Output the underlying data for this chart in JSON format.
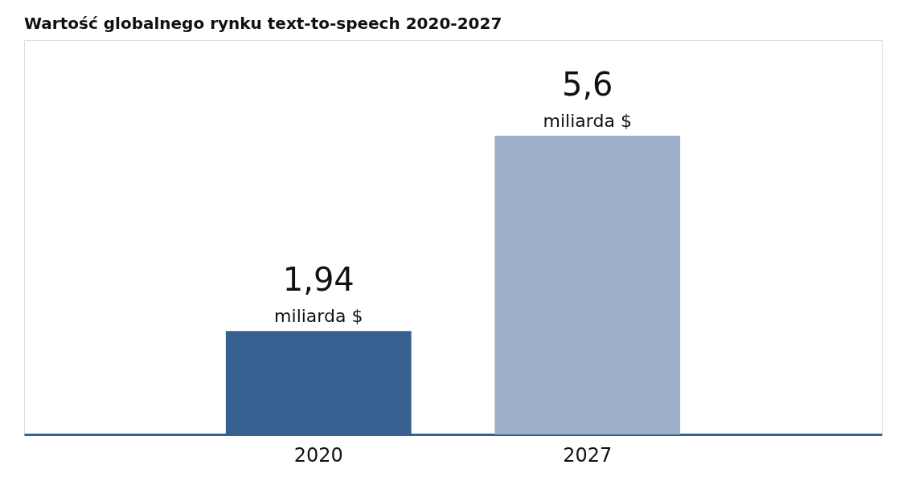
{
  "chart_data": {
    "type": "bar",
    "title": "Wartość globalnego rynku text-to-speech 2020-2027",
    "categories": [
      "2020",
      "2027"
    ],
    "values": [
      1.94,
      5.6
    ],
    "colors": [
      "#36608f",
      "#9db0c9"
    ],
    "value_labels": [
      "1,94",
      "5,6"
    ],
    "annotations": [
      {
        "text": "miliarda $",
        "x": "2020",
        "y": 1.94
      },
      {
        "text": "miliarda $",
        "x": "2027",
        "y": 5.6
      }
    ],
    "grid": false
  }
}
